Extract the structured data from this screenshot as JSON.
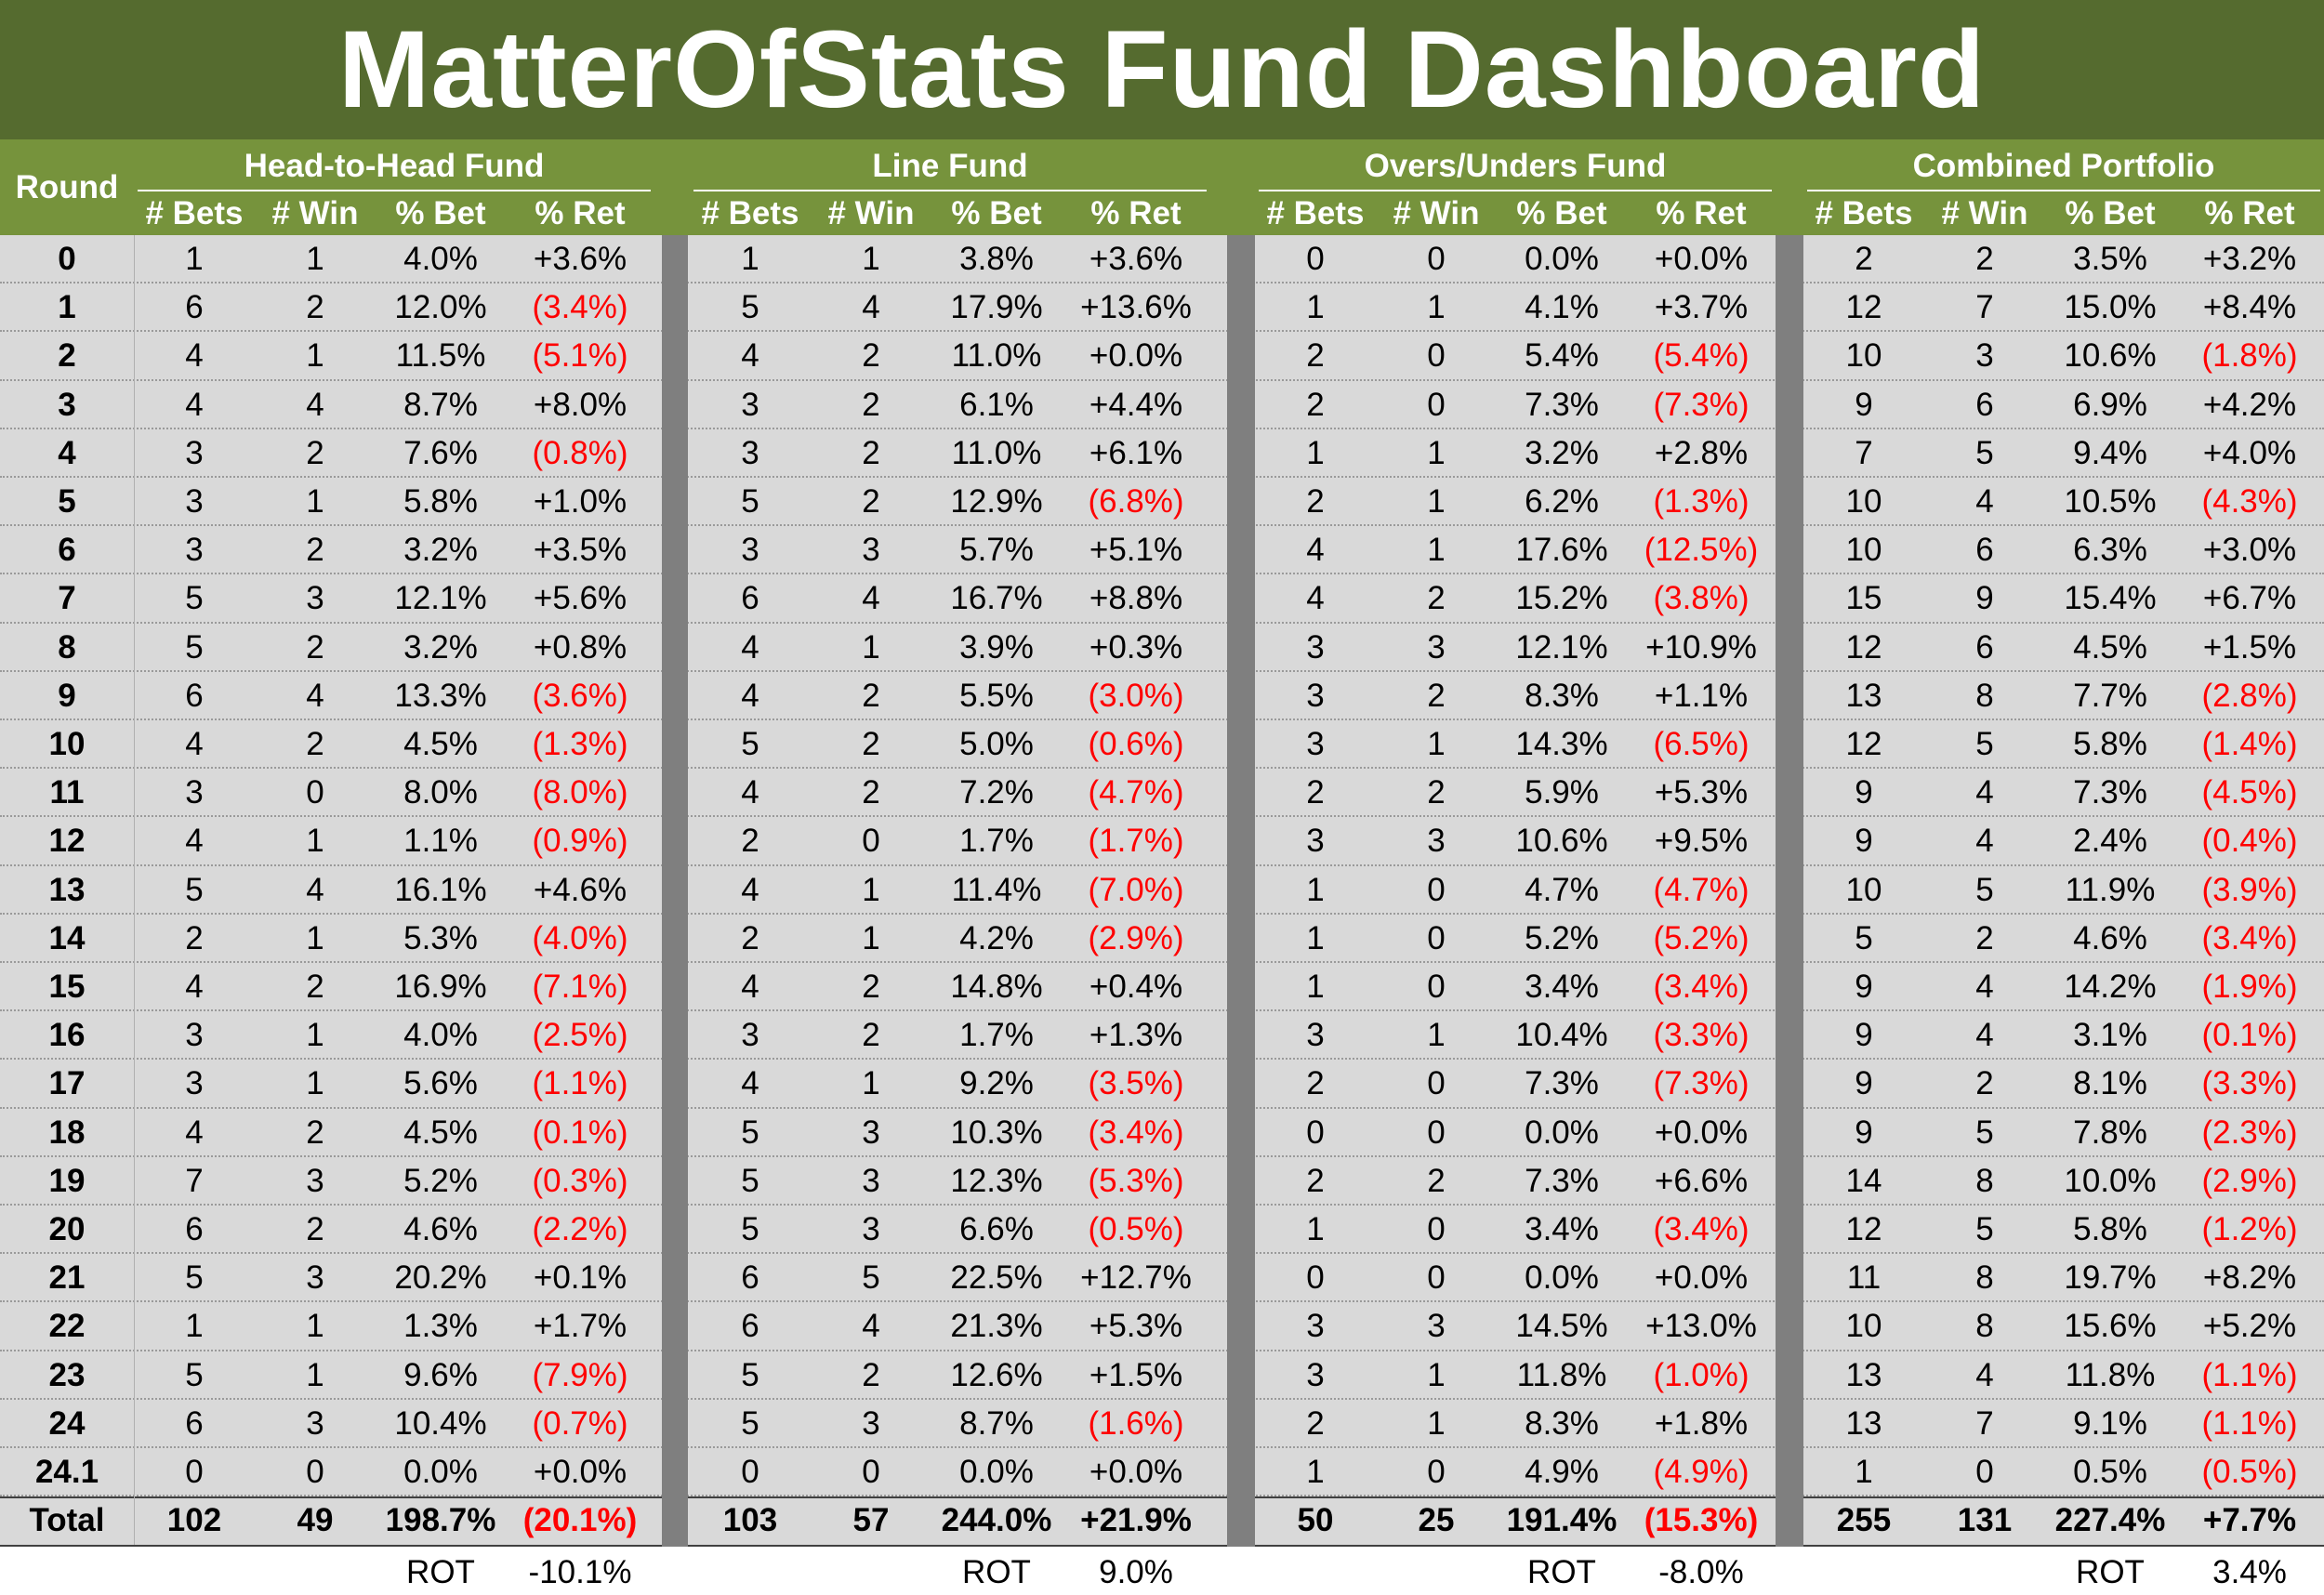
{
  "title": "MatterOfStats Fund Dashboard",
  "round_header": "Round",
  "col_headers": [
    "# Bets",
    "# Win",
    "% Bet",
    "% Ret"
  ],
  "rot_label": "ROT",
  "colors": {
    "header": "#76933c",
    "title": "#556b2f",
    "row": "#d9d9d9",
    "separator": "#7f7f7f",
    "negative": "#ff0000"
  },
  "groups": [
    {
      "name": "Head-to-Head Fund",
      "total": [
        "102",
        "49",
        "198.7%",
        "(20.1%)"
      ],
      "rot": "-10.1%"
    },
    {
      "name": "Line Fund",
      "total": [
        "103",
        "57",
        "244.0%",
        "+21.9%"
      ],
      "rot": "9.0%"
    },
    {
      "name": "Overs/Unders Fund",
      "total": [
        "50",
        "25",
        "191.4%",
        "(15.3%)"
      ],
      "rot": "-8.0%"
    },
    {
      "name": "Combined Portfolio",
      "total": [
        "255",
        "131",
        "227.4%",
        "+7.7%"
      ],
      "rot": "3.4%"
    }
  ],
  "total_label": "Total",
  "rows": [
    {
      "round": "0",
      "cells": [
        [
          "1",
          "1",
          "4.0%",
          "+3.6%"
        ],
        [
          "1",
          "1",
          "3.8%",
          "+3.6%"
        ],
        [
          "0",
          "0",
          "0.0%",
          "+0.0%"
        ],
        [
          "2",
          "2",
          "3.5%",
          "+3.2%"
        ]
      ]
    },
    {
      "round": "1",
      "cells": [
        [
          "6",
          "2",
          "12.0%",
          "(3.4%)"
        ],
        [
          "5",
          "4",
          "17.9%",
          "+13.6%"
        ],
        [
          "1",
          "1",
          "4.1%",
          "+3.7%"
        ],
        [
          "12",
          "7",
          "15.0%",
          "+8.4%"
        ]
      ]
    },
    {
      "round": "2",
      "cells": [
        [
          "4",
          "1",
          "11.5%",
          "(5.1%)"
        ],
        [
          "4",
          "2",
          "11.0%",
          "+0.0%"
        ],
        [
          "2",
          "0",
          "5.4%",
          "(5.4%)"
        ],
        [
          "10",
          "3",
          "10.6%",
          "(1.8%)"
        ]
      ]
    },
    {
      "round": "3",
      "cells": [
        [
          "4",
          "4",
          "8.7%",
          "+8.0%"
        ],
        [
          "3",
          "2",
          "6.1%",
          "+4.4%"
        ],
        [
          "2",
          "0",
          "7.3%",
          "(7.3%)"
        ],
        [
          "9",
          "6",
          "6.9%",
          "+4.2%"
        ]
      ]
    },
    {
      "round": "4",
      "cells": [
        [
          "3",
          "2",
          "7.6%",
          "(0.8%)"
        ],
        [
          "3",
          "2",
          "11.0%",
          "+6.1%"
        ],
        [
          "1",
          "1",
          "3.2%",
          "+2.8%"
        ],
        [
          "7",
          "5",
          "9.4%",
          "+4.0%"
        ]
      ]
    },
    {
      "round": "5",
      "cells": [
        [
          "3",
          "1",
          "5.8%",
          "+1.0%"
        ],
        [
          "5",
          "2",
          "12.9%",
          "(6.8%)"
        ],
        [
          "2",
          "1",
          "6.2%",
          "(1.3%)"
        ],
        [
          "10",
          "4",
          "10.5%",
          "(4.3%)"
        ]
      ]
    },
    {
      "round": "6",
      "cells": [
        [
          "3",
          "2",
          "3.2%",
          "+3.5%"
        ],
        [
          "3",
          "3",
          "5.7%",
          "+5.1%"
        ],
        [
          "4",
          "1",
          "17.6%",
          "(12.5%)"
        ],
        [
          "10",
          "6",
          "6.3%",
          "+3.0%"
        ]
      ]
    },
    {
      "round": "7",
      "cells": [
        [
          "5",
          "3",
          "12.1%",
          "+5.6%"
        ],
        [
          "6",
          "4",
          "16.7%",
          "+8.8%"
        ],
        [
          "4",
          "2",
          "15.2%",
          "(3.8%)"
        ],
        [
          "15",
          "9",
          "15.4%",
          "+6.7%"
        ]
      ]
    },
    {
      "round": "8",
      "cells": [
        [
          "5",
          "2",
          "3.2%",
          "+0.8%"
        ],
        [
          "4",
          "1",
          "3.9%",
          "+0.3%"
        ],
        [
          "3",
          "3",
          "12.1%",
          "+10.9%"
        ],
        [
          "12",
          "6",
          "4.5%",
          "+1.5%"
        ]
      ]
    },
    {
      "round": "9",
      "cells": [
        [
          "6",
          "4",
          "13.3%",
          "(3.6%)"
        ],
        [
          "4",
          "2",
          "5.5%",
          "(3.0%)"
        ],
        [
          "3",
          "2",
          "8.3%",
          "+1.1%"
        ],
        [
          "13",
          "8",
          "7.7%",
          "(2.8%)"
        ]
      ]
    },
    {
      "round": "10",
      "cells": [
        [
          "4",
          "2",
          "4.5%",
          "(1.3%)"
        ],
        [
          "5",
          "2",
          "5.0%",
          "(0.6%)"
        ],
        [
          "3",
          "1",
          "14.3%",
          "(6.5%)"
        ],
        [
          "12",
          "5",
          "5.8%",
          "(1.4%)"
        ]
      ]
    },
    {
      "round": "11",
      "cells": [
        [
          "3",
          "0",
          "8.0%",
          "(8.0%)"
        ],
        [
          "4",
          "2",
          "7.2%",
          "(4.7%)"
        ],
        [
          "2",
          "2",
          "5.9%",
          "+5.3%"
        ],
        [
          "9",
          "4",
          "7.3%",
          "(4.5%)"
        ]
      ]
    },
    {
      "round": "12",
      "cells": [
        [
          "4",
          "1",
          "1.1%",
          "(0.9%)"
        ],
        [
          "2",
          "0",
          "1.7%",
          "(1.7%)"
        ],
        [
          "3",
          "3",
          "10.6%",
          "+9.5%"
        ],
        [
          "9",
          "4",
          "2.4%",
          "(0.4%)"
        ]
      ]
    },
    {
      "round": "13",
      "cells": [
        [
          "5",
          "4",
          "16.1%",
          "+4.6%"
        ],
        [
          "4",
          "1",
          "11.4%",
          "(7.0%)"
        ],
        [
          "1",
          "0",
          "4.7%",
          "(4.7%)"
        ],
        [
          "10",
          "5",
          "11.9%",
          "(3.9%)"
        ]
      ]
    },
    {
      "round": "14",
      "cells": [
        [
          "2",
          "1",
          "5.3%",
          "(4.0%)"
        ],
        [
          "2",
          "1",
          "4.2%",
          "(2.9%)"
        ],
        [
          "1",
          "0",
          "5.2%",
          "(5.2%)"
        ],
        [
          "5",
          "2",
          "4.6%",
          "(3.4%)"
        ]
      ]
    },
    {
      "round": "15",
      "cells": [
        [
          "4",
          "2",
          "16.9%",
          "(7.1%)"
        ],
        [
          "4",
          "2",
          "14.8%",
          "+0.4%"
        ],
        [
          "1",
          "0",
          "3.4%",
          "(3.4%)"
        ],
        [
          "9",
          "4",
          "14.2%",
          "(1.9%)"
        ]
      ]
    },
    {
      "round": "16",
      "cells": [
        [
          "3",
          "1",
          "4.0%",
          "(2.5%)"
        ],
        [
          "3",
          "2",
          "1.7%",
          "+1.3%"
        ],
        [
          "3",
          "1",
          "10.4%",
          "(3.3%)"
        ],
        [
          "9",
          "4",
          "3.1%",
          "(0.1%)"
        ]
      ]
    },
    {
      "round": "17",
      "cells": [
        [
          "3",
          "1",
          "5.6%",
          "(1.1%)"
        ],
        [
          "4",
          "1",
          "9.2%",
          "(3.5%)"
        ],
        [
          "2",
          "0",
          "7.3%",
          "(7.3%)"
        ],
        [
          "9",
          "2",
          "8.1%",
          "(3.3%)"
        ]
      ]
    },
    {
      "round": "18",
      "cells": [
        [
          "4",
          "2",
          "4.5%",
          "(0.1%)"
        ],
        [
          "5",
          "3",
          "10.3%",
          "(3.4%)"
        ],
        [
          "0",
          "0",
          "0.0%",
          "+0.0%"
        ],
        [
          "9",
          "5",
          "7.8%",
          "(2.3%)"
        ]
      ]
    },
    {
      "round": "19",
      "cells": [
        [
          "7",
          "3",
          "5.2%",
          "(0.3%)"
        ],
        [
          "5",
          "3",
          "12.3%",
          "(5.3%)"
        ],
        [
          "2",
          "2",
          "7.3%",
          "+6.6%"
        ],
        [
          "14",
          "8",
          "10.0%",
          "(2.9%)"
        ]
      ]
    },
    {
      "round": "20",
      "cells": [
        [
          "6",
          "2",
          "4.6%",
          "(2.2%)"
        ],
        [
          "5",
          "3",
          "6.6%",
          "(0.5%)"
        ],
        [
          "1",
          "0",
          "3.4%",
          "(3.4%)"
        ],
        [
          "12",
          "5",
          "5.8%",
          "(1.2%)"
        ]
      ]
    },
    {
      "round": "21",
      "cells": [
        [
          "5",
          "3",
          "20.2%",
          "+0.1%"
        ],
        [
          "6",
          "5",
          "22.5%",
          "+12.7%"
        ],
        [
          "0",
          "0",
          "0.0%",
          "+0.0%"
        ],
        [
          "11",
          "8",
          "19.7%",
          "+8.2%"
        ]
      ]
    },
    {
      "round": "22",
      "cells": [
        [
          "1",
          "1",
          "1.3%",
          "+1.7%"
        ],
        [
          "6",
          "4",
          "21.3%",
          "+5.3%"
        ],
        [
          "3",
          "3",
          "14.5%",
          "+13.0%"
        ],
        [
          "10",
          "8",
          "15.6%",
          "+5.2%"
        ]
      ]
    },
    {
      "round": "23",
      "cells": [
        [
          "5",
          "1",
          "9.6%",
          "(7.9%)"
        ],
        [
          "5",
          "2",
          "12.6%",
          "+1.5%"
        ],
        [
          "3",
          "1",
          "11.8%",
          "(1.0%)"
        ],
        [
          "13",
          "4",
          "11.8%",
          "(1.1%)"
        ]
      ]
    },
    {
      "round": "24",
      "cells": [
        [
          "6",
          "3",
          "10.4%",
          "(0.7%)"
        ],
        [
          "5",
          "3",
          "8.7%",
          "(1.6%)"
        ],
        [
          "2",
          "1",
          "8.3%",
          "+1.8%"
        ],
        [
          "13",
          "7",
          "9.1%",
          "(1.1%)"
        ]
      ]
    },
    {
      "round": "24.1",
      "cells": [
        [
          "0",
          "0",
          "0.0%",
          "+0.0%"
        ],
        [
          "0",
          "0",
          "0.0%",
          "+0.0%"
        ],
        [
          "1",
          "0",
          "4.9%",
          "(4.9%)"
        ],
        [
          "1",
          "0",
          "0.5%",
          "(0.5%)"
        ]
      ]
    }
  ]
}
